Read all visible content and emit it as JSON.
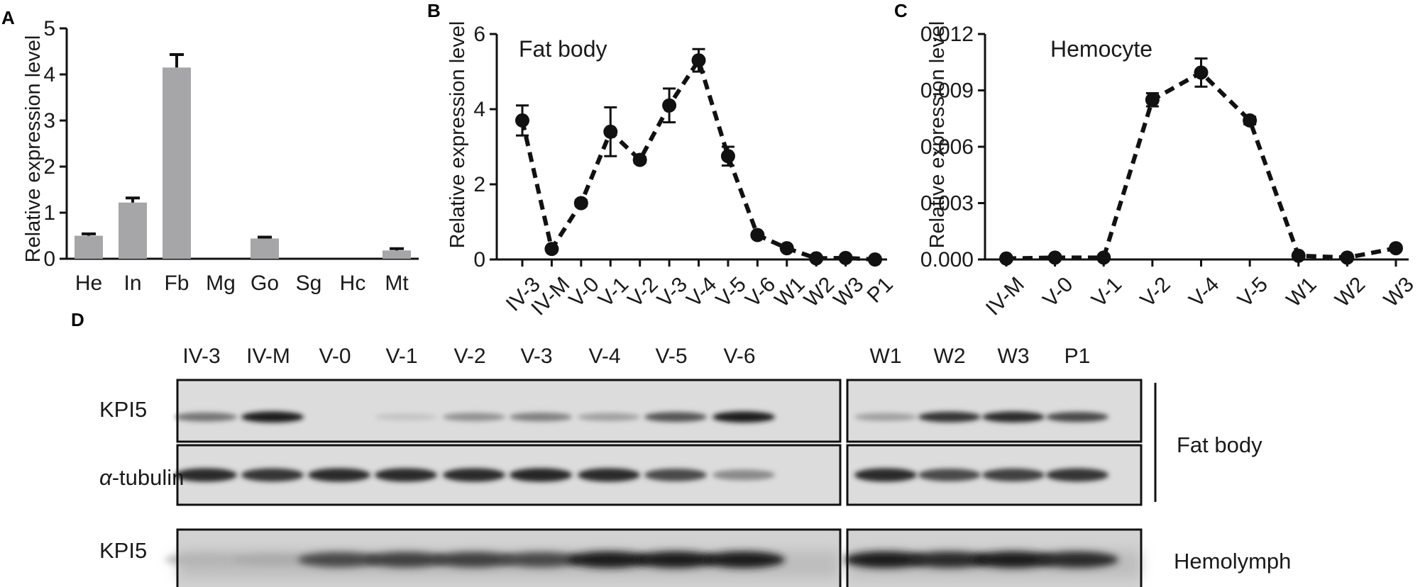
{
  "chart_data": [
    {
      "panel": "A",
      "type": "bar",
      "ylabel": "Relative expression level",
      "ylim": [
        0,
        5
      ],
      "yticks": [
        0,
        1,
        2,
        3,
        4,
        5
      ],
      "categories": [
        "He",
        "In",
        "Fb",
        "Mg",
        "Go",
        "Sg",
        "Hc",
        "Mt"
      ],
      "values": [
        0.5,
        1.22,
        4.15,
        0.0,
        0.44,
        0.0,
        0.0,
        0.18
      ],
      "errors": [
        0.04,
        0.1,
        0.28,
        0.0,
        0.03,
        0.0,
        0.0,
        0.04
      ],
      "bar_color": "#a6a6a8"
    },
    {
      "panel": "B",
      "type": "line",
      "title": "Fat body",
      "ylabel": "Relative expression level",
      "ylim": [
        0,
        6
      ],
      "yticks": [
        0,
        2,
        4,
        6
      ],
      "categories": [
        "IV-3",
        "IV-M",
        "V-0",
        "V-1",
        "V-2",
        "V-3",
        "V-4",
        "V-5",
        "V-6",
        "W1",
        "W2",
        "W3",
        "P1"
      ],
      "values": [
        3.7,
        0.28,
        1.5,
        3.4,
        2.65,
        4.1,
        5.3,
        2.75,
        0.65,
        0.3,
        0.03,
        0.04,
        0.0
      ],
      "errors": [
        0.4,
        0.04,
        0.08,
        0.65,
        0.08,
        0.45,
        0.3,
        0.25,
        0.06,
        0.03,
        0.01,
        0.01,
        0.0
      ],
      "line_style": "dashed"
    },
    {
      "panel": "C",
      "type": "line",
      "title": "Hemocyte",
      "ylabel": "Relative expression level",
      "ylim": [
        0,
        0.012
      ],
      "yticks": [
        "0.000",
        "0.003",
        "0.006",
        "0.009",
        "0.012"
      ],
      "categories": [
        "IV-M",
        "V-0",
        "V-1",
        "V-2",
        "V-4",
        "V-5",
        "W1",
        "W2",
        "W3"
      ],
      "values": [
        5e-05,
        0.0001,
        0.0001,
        0.0085,
        0.00995,
        0.0074,
        0.0002,
        0.0001,
        0.0006
      ],
      "errors": [
        0.0,
        0.0,
        0.0,
        0.00035,
        0.00075,
        0.0002,
        0.0,
        0.0,
        0.0
      ],
      "line_style": "dashed"
    },
    {
      "panel": "D",
      "type": "table",
      "lanes_left": [
        "IV-3",
        "IV-M",
        "V-0",
        "V-1",
        "V-2",
        "V-3",
        "V-4",
        "V-5",
        "V-6"
      ],
      "lanes_right": [
        "W1",
        "W2",
        "W3",
        "P1"
      ],
      "rows": [
        "KPI5",
        "α-tubulin",
        "KPI5"
      ],
      "row_prefix_italic": "α",
      "row_suffix": "-tubulin",
      "groups": [
        "Fat body",
        "Hemolymph"
      ],
      "band_intensity": {
        "fatbody_kpi5_left": [
          0.55,
          0.95,
          0.0,
          0.18,
          0.42,
          0.5,
          0.35,
          0.7,
          0.95
        ],
        "fatbody_kpi5_right": [
          0.35,
          0.85,
          0.9,
          0.75
        ],
        "tubulin_left": [
          0.9,
          0.85,
          0.9,
          0.9,
          0.9,
          0.92,
          0.9,
          0.75,
          0.45
        ],
        "tubulin_right": [
          0.9,
          0.75,
          0.8,
          0.85
        ],
        "hemolymph_left": [
          0.25,
          0.3,
          0.75,
          0.8,
          0.8,
          0.75,
          0.95,
          0.95,
          0.95
        ],
        "hemolymph_right": [
          0.95,
          0.9,
          0.95,
          0.9
        ]
      }
    }
  ]
}
